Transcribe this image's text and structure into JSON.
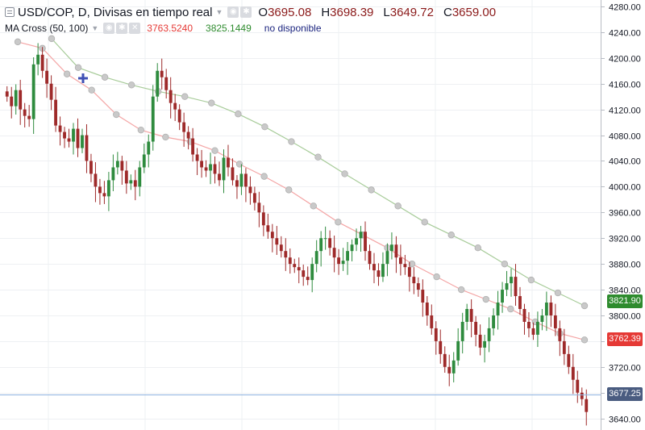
{
  "legend": {
    "symbol": "USD/COP, D, Divisas en tiempo real",
    "ohlc": [
      {
        "key": "O",
        "value": "3695.08"
      },
      {
        "key": "H",
        "value": "3698.39"
      },
      {
        "key": "L",
        "value": "3649.72"
      },
      {
        "key": "C",
        "value": "3659.00"
      }
    ],
    "indicator": {
      "name": "MA Cross (50, 100)",
      "value_fast": "3763.5240",
      "value_slow": "3825.1449",
      "value_extra": "no disponible"
    },
    "icons": [
      "eye-icon",
      "settings-icon",
      "close-icon"
    ]
  },
  "price_labels": {
    "slow_ma": {
      "text": "3821.90",
      "value": 3821.9,
      "color": "#2e8b2e"
    },
    "fast_ma": {
      "text": "3762.39",
      "value": 3762.39,
      "color": "#e53935"
    },
    "last": {
      "text": "3677.25",
      "value": 3677.25,
      "color": "#4a5c80"
    }
  },
  "colors": {
    "up": "#2e8b3e",
    "down": "#9e2a2a",
    "fast_ma": "#f4a5a5",
    "slow_ma": "#a8cc9a",
    "grid": "#eef0f3",
    "price_line": "#8fb3e0"
  },
  "chart_data": {
    "type": "candlestick",
    "ylim": [
      3622,
      4290
    ],
    "yticks": [
      3640,
      3680,
      3720,
      3760,
      3800,
      3840,
      3880,
      3920,
      3960,
      4000,
      4040,
      4080,
      4120,
      4160,
      4200,
      4240,
      4280
    ],
    "ma_slow_points": [
      4230,
      4185,
      4170,
      4158,
      4148,
      4140,
      4130,
      4113,
      4093,
      4070,
      4046,
      4020,
      3995,
      3970,
      3945,
      3925,
      3905,
      3880,
      3855,
      3835,
      3815
    ],
    "ma_fast_points": [
      4225,
      4215,
      4175,
      4150,
      4112,
      4088,
      4077,
      4070,
      4056,
      4035,
      4016,
      3995,
      3970,
      3945,
      3925,
      3905,
      3880,
      3860,
      3840,
      3825,
      3810,
      3790,
      3772,
      3762
    ],
    "closes": [
      4140,
      4125,
      4150,
      4120,
      4110,
      4105,
      4190,
      4205,
      4180,
      4160,
      4135,
      4095,
      4085,
      4075,
      4070,
      4090,
      4060,
      4080,
      4040,
      4020,
      4000,
      3990,
      3985,
      4010,
      4030,
      4040,
      4025,
      4005,
      4010,
      4000,
      4030,
      4050,
      4070,
      4140,
      4180,
      4170,
      4150,
      4130,
      4120,
      4100,
      4085,
      4075,
      4050,
      4040,
      4030,
      4025,
      4035,
      4020,
      4010,
      4045,
      4030,
      4010,
      4000,
      4020,
      4000,
      3990,
      3975,
      3960,
      3940,
      3930,
      3920,
      3910,
      3900,
      3890,
      3880,
      3875,
      3870,
      3860,
      3855,
      3880,
      3900,
      3920,
      3920,
      3905,
      3890,
      3880,
      3885,
      3900,
      3910,
      3920,
      3930,
      3900,
      3880,
      3870,
      3860,
      3880,
      3900,
      3910,
      3890,
      3880,
      3875,
      3860,
      3850,
      3840,
      3820,
      3800,
      3780,
      3760,
      3740,
      3720,
      3710,
      3730,
      3760,
      3790,
      3810,
      3790,
      3770,
      3750,
      3760,
      3780,
      3800,
      3820,
      3840,
      3850,
      3860,
      3830,
      3810,
      3790,
      3780,
      3770,
      3790,
      3800,
      3820,
      3800,
      3780,
      3760,
      3740,
      3720,
      3700,
      3680,
      3670,
      3650
    ]
  }
}
